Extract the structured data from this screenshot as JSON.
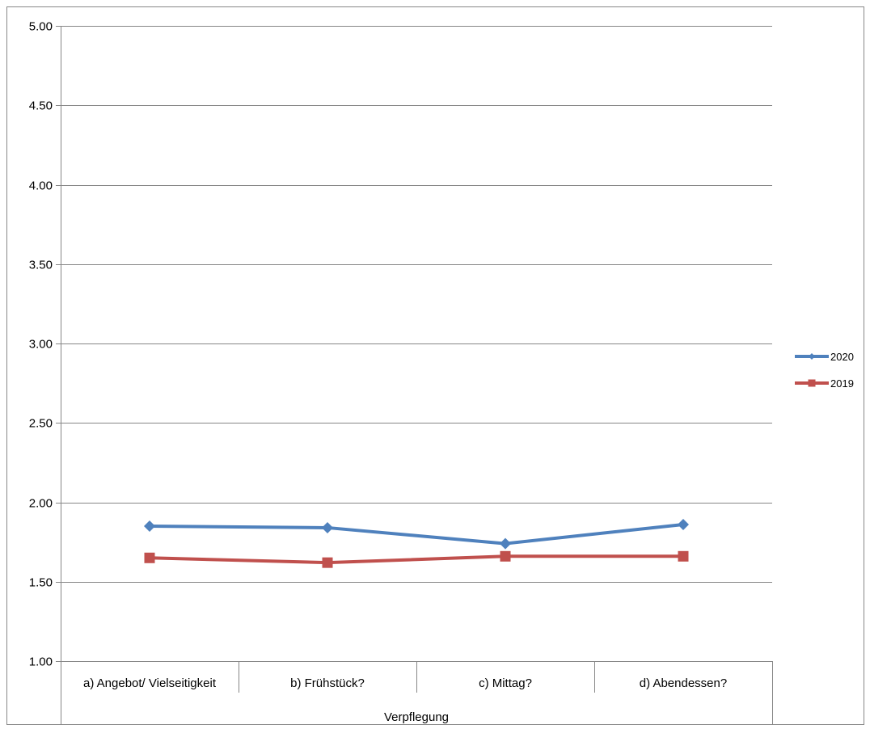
{
  "chart_data": {
    "type": "line",
    "title": "",
    "xlabel": "",
    "ylabel": "",
    "ylim": [
      1.0,
      5.0
    ],
    "y_ticks": [
      "1.00",
      "1.50",
      "2.00",
      "2.50",
      "3.00",
      "3.50",
      "4.00",
      "4.50",
      "5.00"
    ],
    "y_tick_values": [
      1.0,
      1.5,
      2.0,
      2.5,
      3.0,
      3.5,
      4.0,
      4.5,
      5.0
    ],
    "categories": [
      "a) Angebot/ Vielseitigkeit",
      "b) Frühstück?",
      "c) Mittag?",
      "d) Abendessen?"
    ],
    "group_label": "Verpflegung",
    "grid": true,
    "legend_position": "right",
    "series": [
      {
        "name": "2020",
        "color": "#4f81bd",
        "marker": "diamond",
        "values": [
          1.85,
          1.84,
          1.74,
          1.86
        ]
      },
      {
        "name": "2019",
        "color": "#c0504d",
        "marker": "square",
        "values": [
          1.65,
          1.62,
          1.66,
          1.66
        ]
      }
    ]
  }
}
